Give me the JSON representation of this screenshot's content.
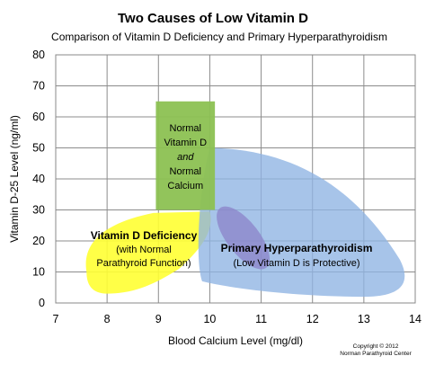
{
  "chart_data": {
    "type": "area",
    "title": "Two Causes of Low Vitamin D",
    "subtitle": "Comparison of Vitamin D Deficiency and Primary Hyperparathyroidism",
    "xlabel": "Blood Calcium Level  (mg/dl)",
    "ylabel": "Vitamin D-25 Level  (ng/ml)",
    "xlim": [
      7,
      14
    ],
    "ylim": [
      0,
      80
    ],
    "xticks": [
      "7",
      "8",
      "9",
      "10",
      "11",
      "12",
      "13",
      "14"
    ],
    "yticks": [
      "0",
      "10",
      "20",
      "30",
      "40",
      "50",
      "60",
      "70",
      "80"
    ],
    "grid": true,
    "regions": {
      "normal": {
        "color": "#8cc152",
        "lines": [
          "Normal",
          "Vitamin D",
          "and",
          "Normal",
          "Calcium"
        ],
        "x_range": [
          8.95,
          10.1
        ],
        "y_range": [
          30,
          65
        ]
      },
      "deficiency": {
        "color": "#ffff33",
        "title": "Vitamin D Deficiency",
        "lines": [
          "(with Normal",
          "Parathyroid Function)"
        ]
      },
      "hyperpara": {
        "color": "#8eb4e3",
        "title": "Primary Hyperparathyroidism",
        "lines": [
          "(Low Vitamin D is Protective)"
        ]
      },
      "overlap": {
        "color": "#8a7fc8"
      }
    },
    "copyright": [
      "Copyright © 2012",
      "Norman Parathyroid  Center"
    ]
  }
}
